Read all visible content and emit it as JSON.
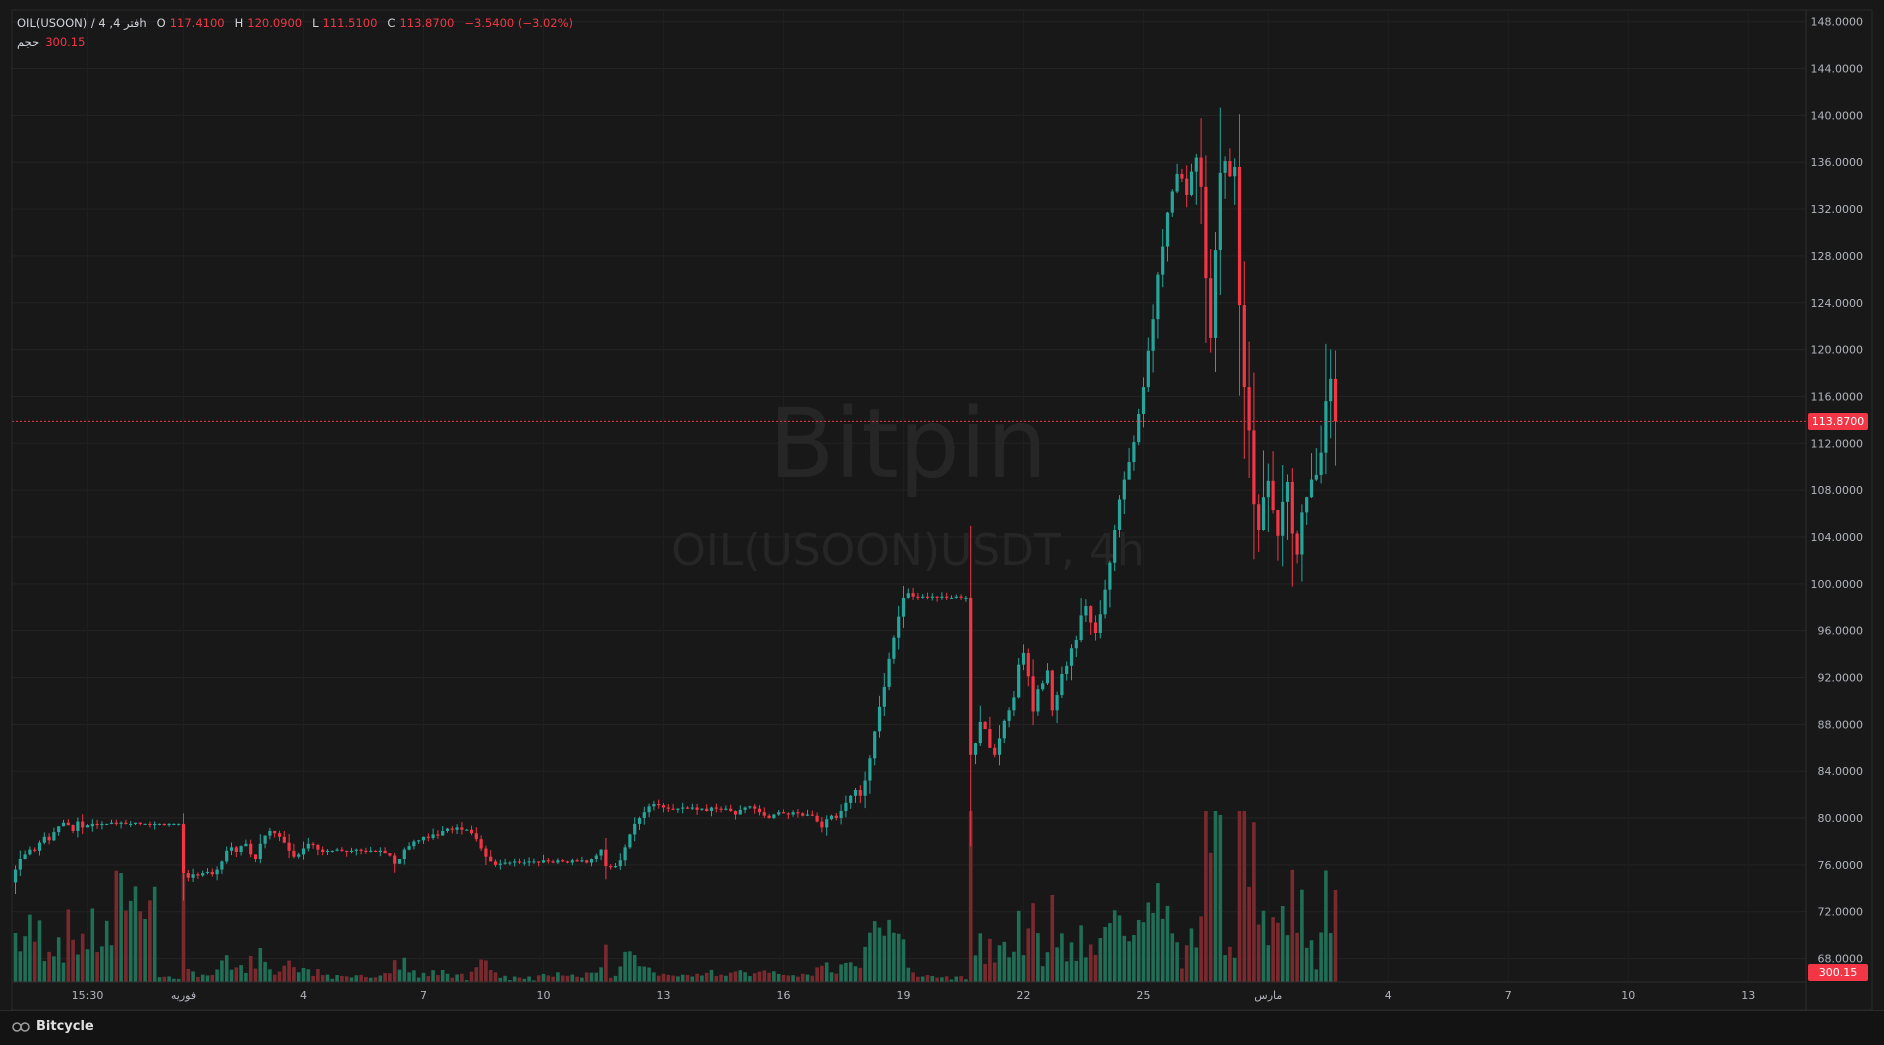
{
  "legend": {
    "symbol": "OIL(USOON) / 4 ,فتر 4h",
    "open_label": "O",
    "open": "117.4100",
    "high_label": "H",
    "high": "120.0900",
    "low_label": "L",
    "low": "111.5100",
    "close_label": "C",
    "close": "113.8700",
    "change": "−3.5400 (−3.02%)"
  },
  "volume_legend": {
    "label": "حجم",
    "value": "300.15"
  },
  "watermark": {
    "brand": "Bitpin",
    "symbol": "OIL(USOON)USDT, 4h"
  },
  "footer": {
    "brand": "Bitcycle"
  },
  "price_tags": {
    "last_price": "113.8700",
    "last_volume": "300.15"
  },
  "colors": {
    "up": "#26a69a",
    "down": "#f23645",
    "up_vol": "#1f6e55",
    "down_vol": "#7a2a2e"
  },
  "chart_data": {
    "type": "candlestick",
    "ylim": [
      66.0,
      149.0
    ],
    "y_ticks": [
      "148.0000",
      "144.0000",
      "140.0000",
      "136.0000",
      "132.0000",
      "128.0000",
      "124.0000",
      "120.0000",
      "116.0000",
      "112.0000",
      "108.0000",
      "104.0000",
      "100.0000",
      "96.0000",
      "92.0000",
      "88.0000",
      "84.0000",
      "80.0000",
      "76.0000",
      "72.0000",
      "68.0000"
    ],
    "x_ticks": [
      {
        "label": "15:30",
        "index": 15
      },
      {
        "label": "فوریه",
        "index": 35
      },
      {
        "label": "4",
        "index": 60
      },
      {
        "label": "7",
        "index": 85
      },
      {
        "label": "10",
        "index": 110
      },
      {
        "label": "13",
        "index": 135
      },
      {
        "label": "16",
        "index": 160
      },
      {
        "label": "19",
        "index": 185
      },
      {
        "label": "22",
        "index": 210
      },
      {
        "label": "25",
        "index": 235
      },
      {
        "label": "مارس",
        "index": 261
      },
      {
        "label": "4",
        "index": 286
      },
      {
        "label": "7",
        "index": 311
      },
      {
        "label": "10",
        "index": 336
      },
      {
        "label": "13",
        "index": 361
      }
    ],
    "segments": [
      [
        0,
        74.5,
        [
          75.6,
          76.5,
          76.9,
          77.3,
          77.2,
          77.9,
          78.4,
          78.1,
          78.8,
          79.3,
          79.6,
          79.4,
          78.9,
          79.7,
          79.2,
          79.4
        ]
      ],
      [
        16,
        79.3,
        [
          79.5,
          79.4,
          79.5,
          79.5,
          79.6,
          79.5,
          79.6,
          79.5,
          79.5,
          79.6,
          79.5,
          79.5,
          79.4,
          79.5,
          79.5,
          79.4,
          79.5,
          79.5,
          79.5
        ]
      ],
      [
        35,
        79.5,
        [
          75.3,
          74.9,
          75.2,
          75.1,
          75.3,
          75.4,
          75.2,
          75.6,
          76.3,
          77.2,
          77.5,
          77.1,
          77.6,
          77.8,
          76.9,
          76.5
        ]
      ],
      [
        51,
        76.5,
        [
          77.8,
          78.5,
          78.9,
          78.7,
          78.4,
          77.9,
          77.2,
          76.7,
          76.9,
          77.4,
          77.8,
          77.7,
          77.3,
          77.1,
          77.2,
          77.2
        ]
      ],
      [
        67,
        77.2,
        [
          77.3,
          77.2,
          77.1,
          77.2,
          77.3,
          77.2,
          77.1,
          77.2,
          77.1,
          77.2,
          77.0,
          76.8,
          76.1,
          76.5,
          77.3,
          77.6,
          78.0,
          78.1,
          78.4,
          78.3,
          78.6,
          78.5
        ]
      ],
      [
        89,
        78.5,
        [
          78.9,
          79.1,
          79.0,
          79.2,
          79.0,
          79.0,
          78.7,
          78.2,
          77.4,
          76.7,
          76.3,
          76.0,
          76.1,
          76.2,
          76.2,
          76.3,
          76.2,
          76.2,
          76.3,
          76.3
        ]
      ],
      [
        109,
        76.3,
        [
          76.2,
          76.4,
          76.3,
          76.2,
          76.4,
          76.3,
          76.2,
          76.4,
          76.3,
          76.4,
          76.2,
          76.5,
          76.8,
          77.3,
          75.9,
          75.8,
          75.9,
          76.4
        ]
      ],
      [
        127,
        76.4,
        [
          77.5,
          78.6,
          79.5,
          80.0,
          80.5,
          81.0,
          81.2,
          81.1,
          80.9,
          80.8,
          80.7,
          80.8,
          80.9,
          80.8,
          80.9,
          80.7,
          80.8,
          80.6,
          80.9,
          80.8,
          80.7,
          80.8,
          80.6,
          80.3
        ]
      ],
      [
        151,
        80.3,
        [
          80.7,
          80.9,
          81.0,
          80.8,
          80.5,
          80.2,
          80.0,
          80.3,
          80.5,
          80.4,
          80.3,
          80.5,
          80.4,
          80.2,
          80.3,
          80.2,
          79.7,
          79.2,
          79.9,
          80.2,
          80.0,
          80.6,
          81.3,
          81.9
        ]
      ],
      [
        175,
        81.9,
        [
          82.4,
          81.9,
          83.2,
          85.1,
          87.4,
          89.5,
          91.2,
          93.6,
          95.4,
          97.2,
          98.8,
          99.2,
          98.9,
          98.8,
          98.9,
          98.8,
          98.9,
          98.8,
          98.9,
          98.8,
          98.8,
          98.9,
          98.8,
          98.8
        ]
      ],
      [
        199,
        98.8,
        [
          85.4,
          86.4,
          88.2,
          87.6,
          86.0,
          85.4,
          86.8,
          88.3,
          89.2,
          90.3,
          93.1,
          94.1,
          92.1,
          89.1,
          91.0,
          91.5,
          92.6,
          89.2,
          90.5,
          92.3,
          93.0,
          94.5,
          95.2
        ]
      ],
      [
        222,
        95.2,
        [
          97.3,
          98.1,
          96.7,
          95.8,
          97.4,
          99.5,
          101.8,
          104.6,
          107.2,
          108.9,
          110.4,
          112.1,
          114.5,
          116.8,
          119.9,
          122.6,
          126.4,
          128.8,
          131.7,
          133.5,
          135.0,
          134.6,
          133.2,
          135.2
        ]
      ],
      [
        246,
        135.2,
        [
          136.4,
          133.9,
          126.1,
          121.0,
          128.5,
          135.1,
          136.1,
          134.8,
          135.6,
          123.8,
          116.8,
          113.1,
          106.8,
          104.6,
          107.4,
          108.8,
          106.3,
          104.1,
          107.0,
          108.7,
          104.3,
          102.5,
          106.1,
          107.4,
          108.9,
          109.3,
          111.2,
          115.6,
          117.5,
          113.9
        ]
      ]
    ],
    "volume": {
      "ylim": [
        0,
        46
      ]
    }
  }
}
